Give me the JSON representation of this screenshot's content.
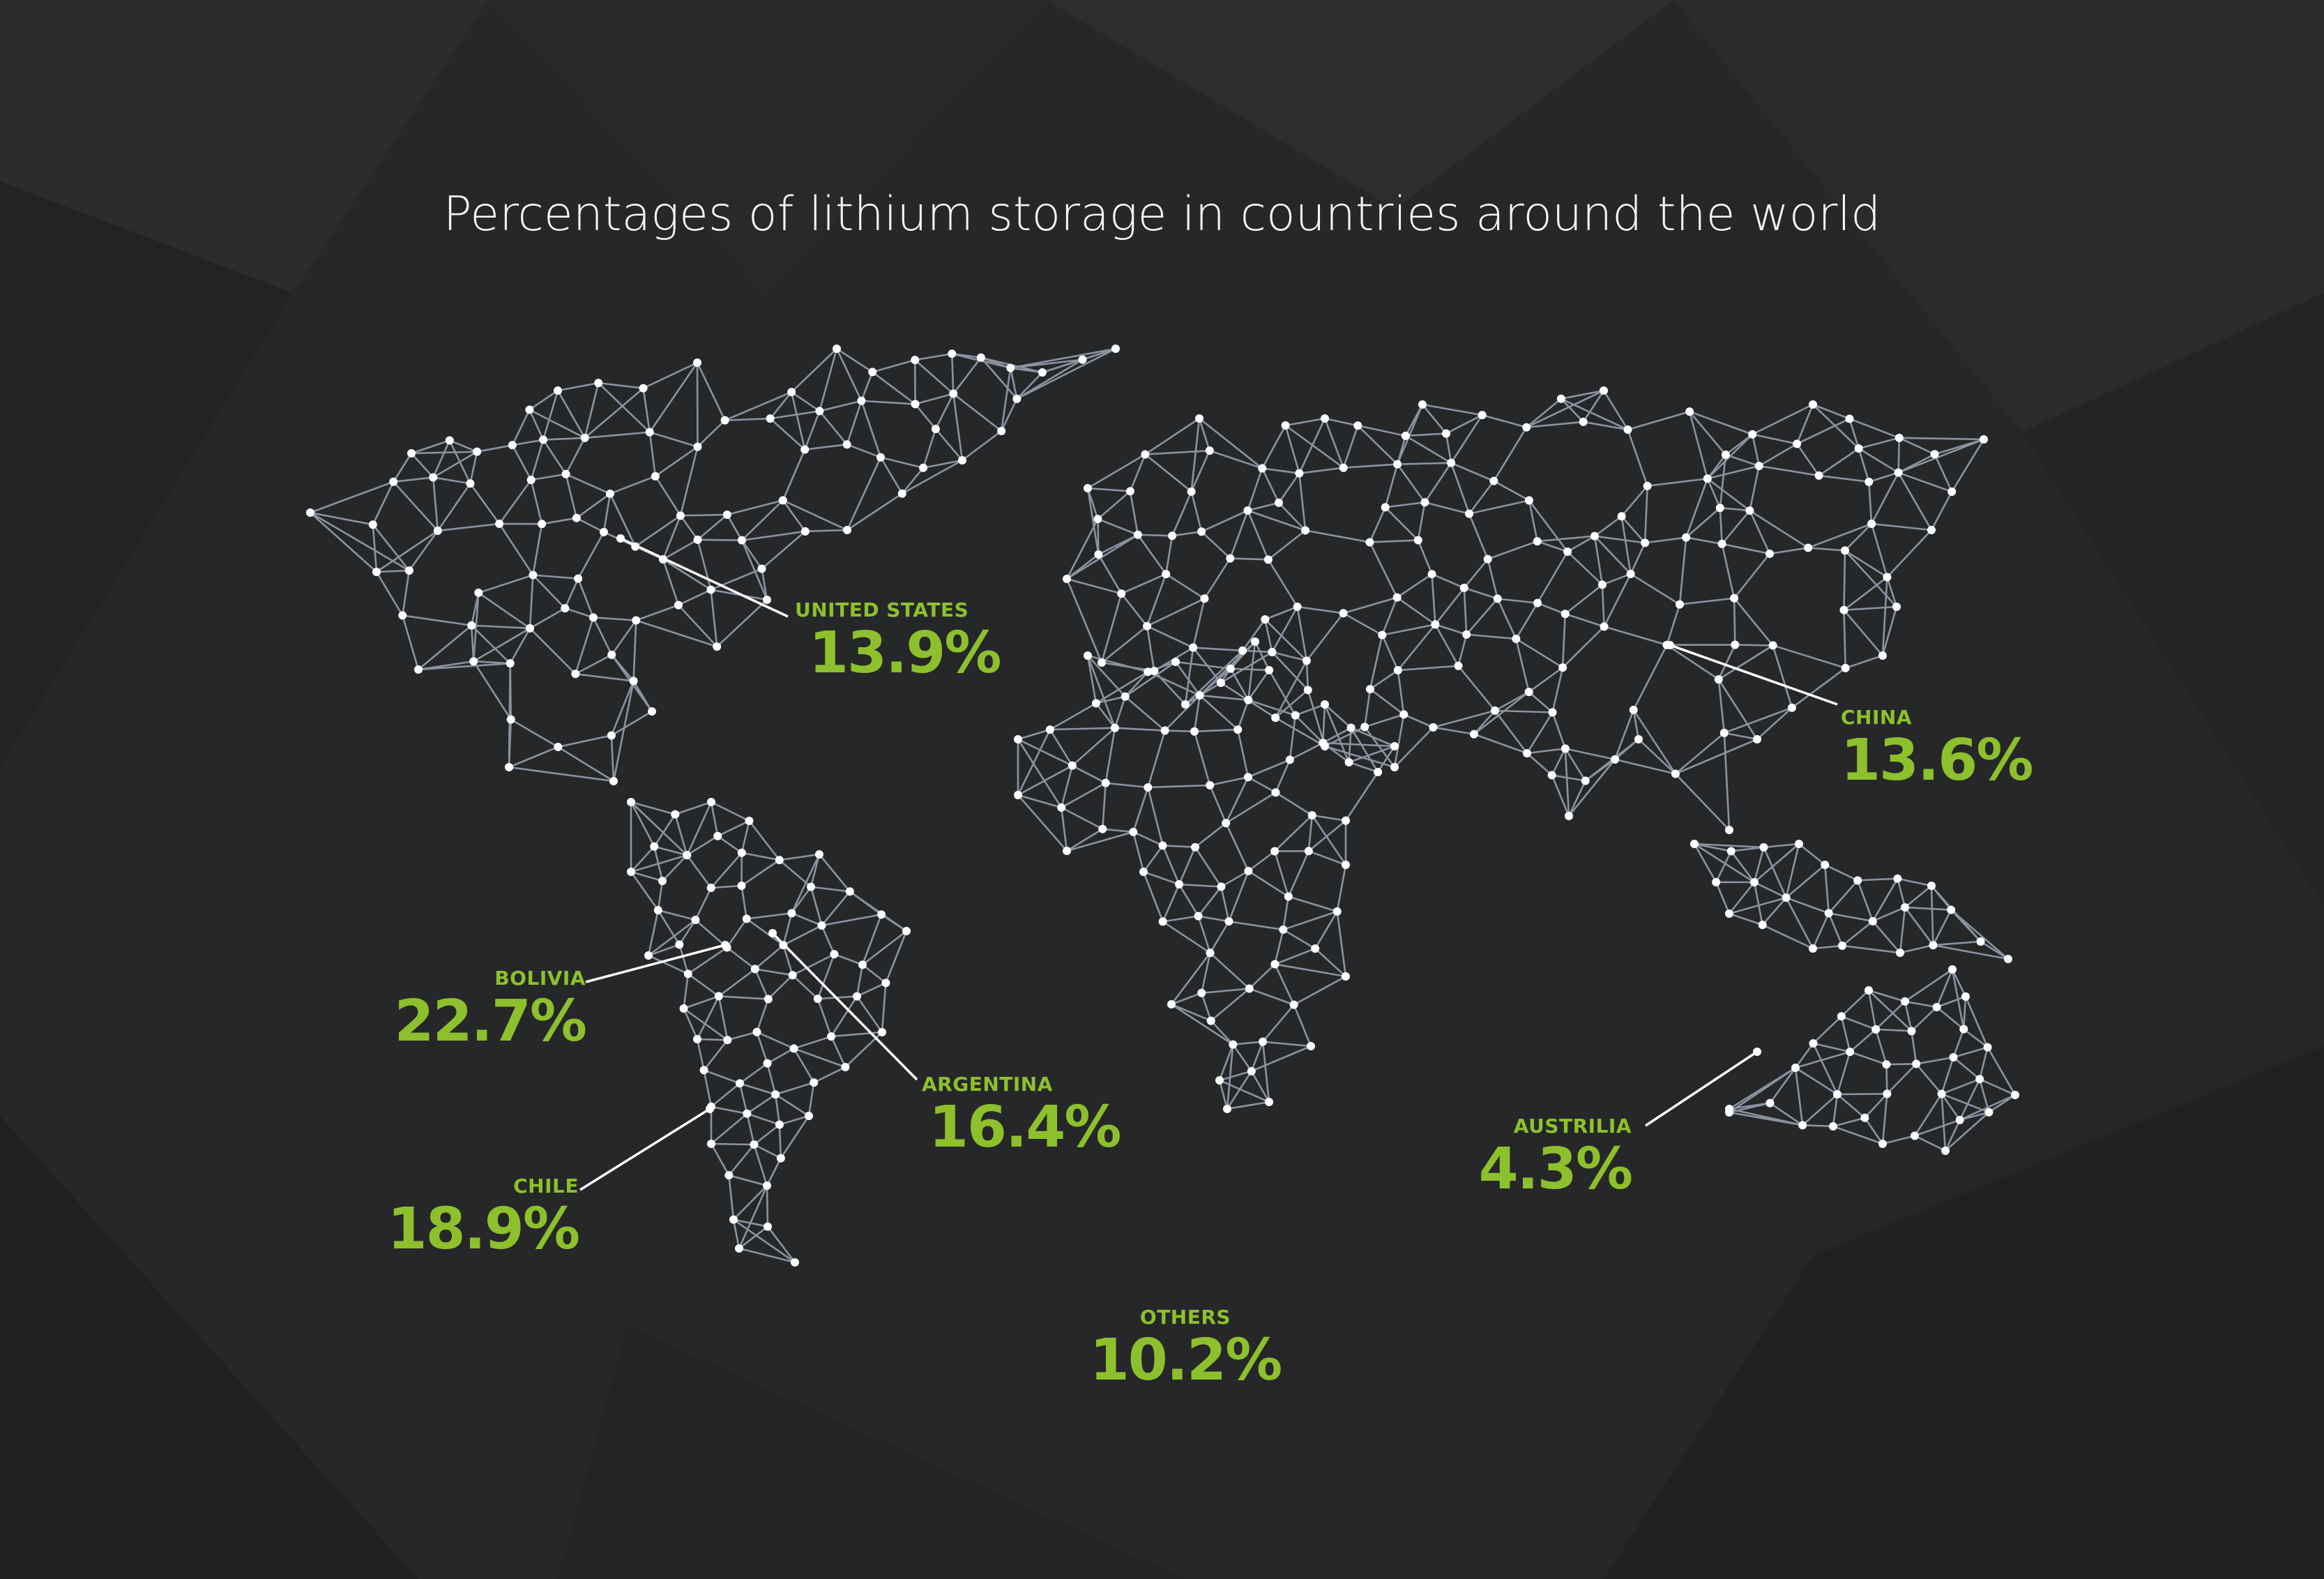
{
  "title": "Percentages of lithium storage in countries around the world",
  "accent_color": "#8dc02c",
  "background_color": "#262729",
  "network_line_color": "#8a93a0",
  "node_color": "#ffffff",
  "labels": {
    "united_states": {
      "name": "UNITED STATES",
      "value": "13.9%"
    },
    "china": {
      "name": "CHINA",
      "value": "13.6%"
    },
    "bolivia": {
      "name": "BOLIVIA",
      "value": "22.7%"
    },
    "argentina": {
      "name": "ARGENTINA",
      "value": "16.4%"
    },
    "chile": {
      "name": "CHILE",
      "value": "18.9%"
    },
    "australia": {
      "name": "AUSTRILIA",
      "value": "4.3%"
    },
    "others": {
      "name": "OTHERS",
      "value": "10.2%"
    }
  }
}
